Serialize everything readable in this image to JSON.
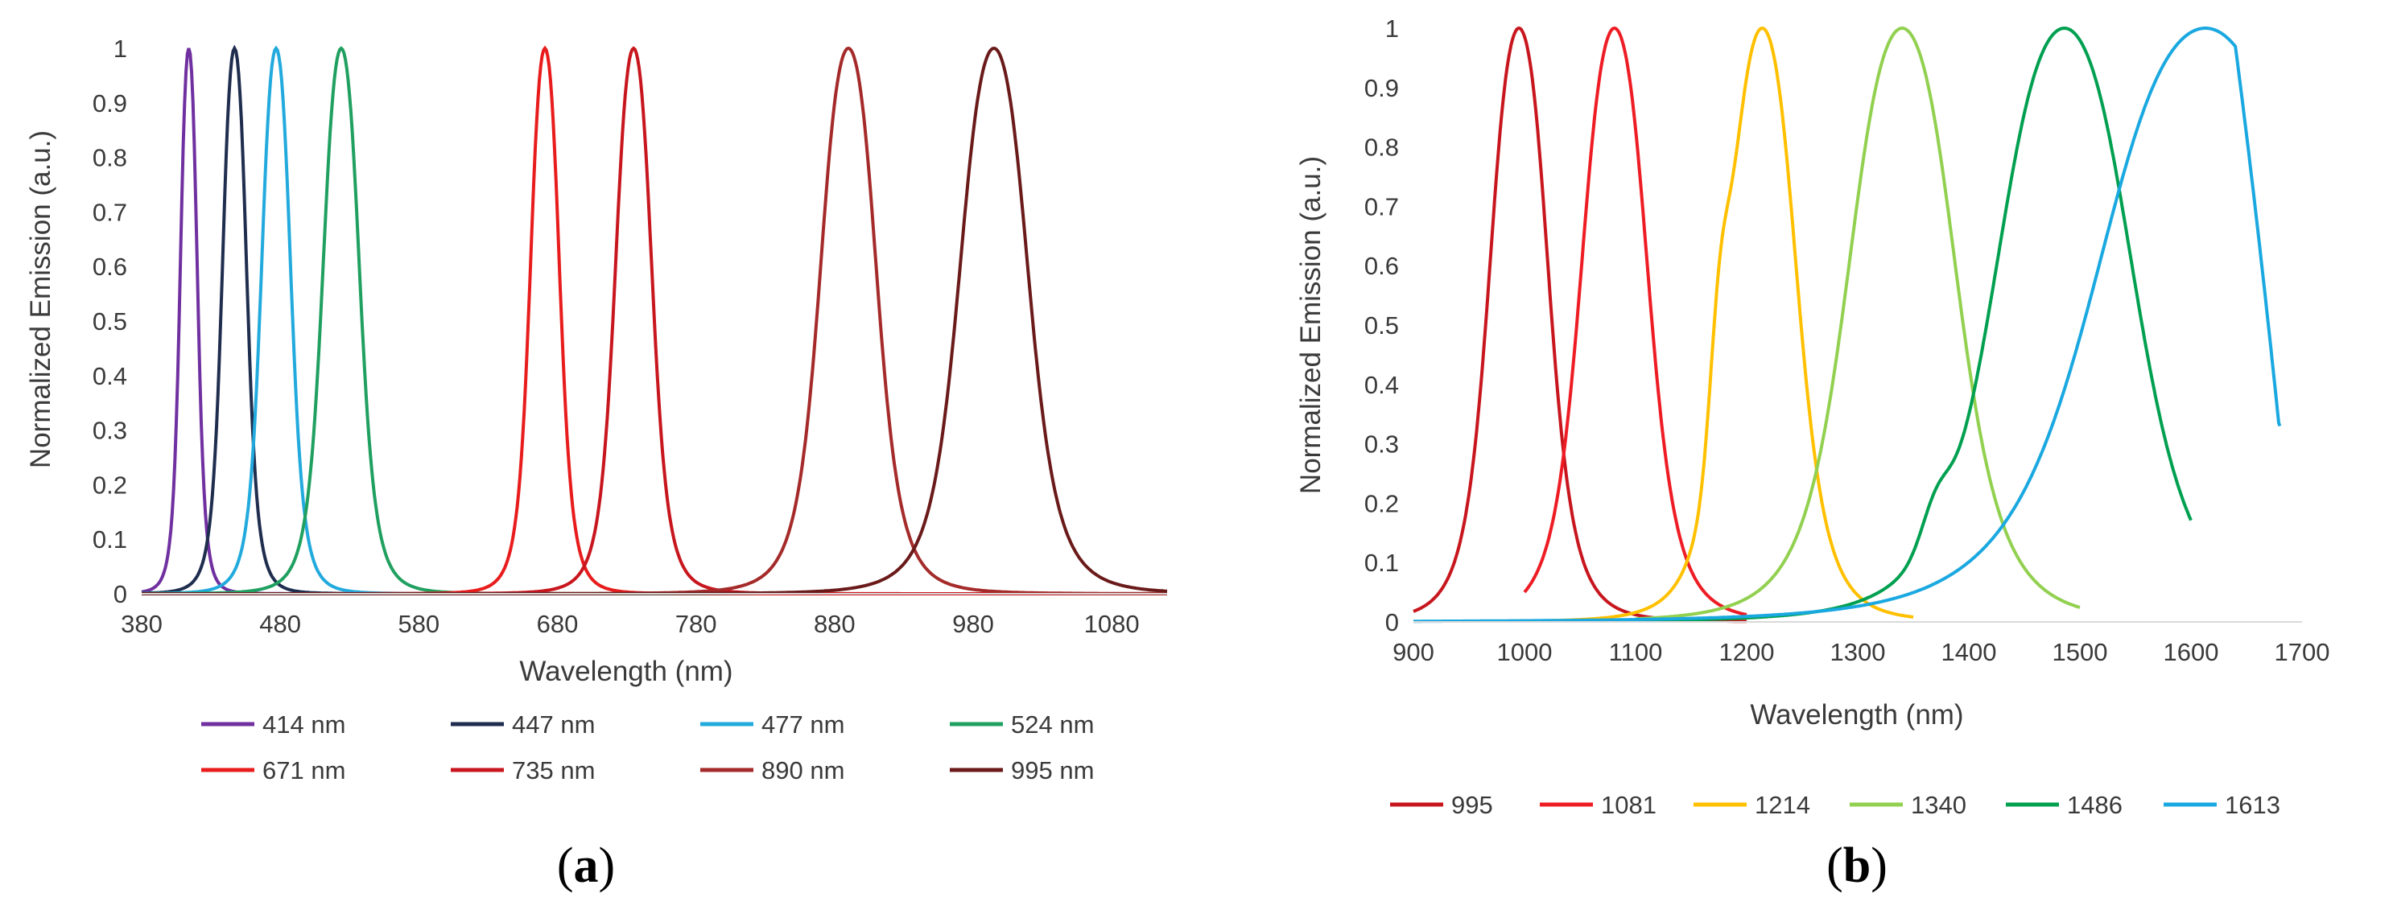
{
  "chart_data": [
    {
      "type": "line",
      "panel_label": "a",
      "xlabel": "Wavelength (nm)",
      "ylabel": "Normalized Emission (a.u.)",
      "xlim": [
        380,
        1120
      ],
      "ylim": [
        0,
        1
      ],
      "x_ticks": [
        380,
        480,
        580,
        680,
        780,
        880,
        980,
        1080
      ],
      "y_ticks": [
        0,
        0.1,
        0.2,
        0.3,
        0.4,
        0.5,
        0.6,
        0.7,
        0.8,
        0.9,
        1
      ],
      "grid": false,
      "legend_position": "bottom",
      "series": [
        {
          "name": "414 nm",
          "color": "#7030a0",
          "peak": 414,
          "fwhm": 14
        },
        {
          "name": "447 nm",
          "color": "#1f2d4e",
          "peak": 447,
          "fwhm": 20
        },
        {
          "name": "477 nm",
          "color": "#22aadd",
          "peak": 477,
          "fwhm": 24
        },
        {
          "name": "524 nm",
          "color": "#20a060",
          "peak": 524,
          "fwhm": 30
        },
        {
          "name": "671 nm",
          "color": "#e81c1c",
          "peak": 671,
          "fwhm": 24
        },
        {
          "name": "735 nm",
          "color": "#c8161e",
          "peak": 735,
          "fwhm": 30
        },
        {
          "name": "890 nm",
          "color": "#a52a2a",
          "peak": 890,
          "fwhm": 46
        },
        {
          "name": "995 nm",
          "color": "#6b1a1a",
          "peak": 995,
          "fwhm": 56
        }
      ]
    },
    {
      "type": "line",
      "panel_label": "b",
      "xlabel": "Wavelength (nm)",
      "ylabel": "Normalized Emission (a.u.)",
      "xlim": [
        900,
        1700
      ],
      "ylim": [
        0,
        1
      ],
      "x_ticks": [
        900,
        1000,
        1100,
        1200,
        1300,
        1400,
        1500,
        1600,
        1700
      ],
      "y_ticks": [
        0,
        0.1,
        0.2,
        0.3,
        0.4,
        0.5,
        0.6,
        0.7,
        0.8,
        0.9,
        1
      ],
      "grid": false,
      "legend_position": "bottom",
      "series": [
        {
          "name": "995",
          "color": "#c8161e",
          "peak": 995,
          "fwhm": 60,
          "range": [
            900,
            1200
          ]
        },
        {
          "name": "1081",
          "color": "#ee1c24",
          "peak": 1081,
          "fwhm": 68,
          "range": [
            1000,
            1200
          ]
        },
        {
          "name": "1214",
          "color": "#ffc000",
          "peak": 1214,
          "fwhm": 70,
          "range": [
            1000,
            1350
          ]
        },
        {
          "name": "1340",
          "color": "#92d050",
          "peak": 1340,
          "fwhm": 110,
          "range": [
            1100,
            1500
          ]
        },
        {
          "name": "1486",
          "color": "#00a050",
          "peak": 1486,
          "fwhm": 140,
          "range": [
            1100,
            1600
          ]
        },
        {
          "name": "1613",
          "color": "#1aa8e0",
          "peak": 1613,
          "fwhm": 220,
          "range": [
            900,
            1680
          ]
        }
      ]
    }
  ]
}
